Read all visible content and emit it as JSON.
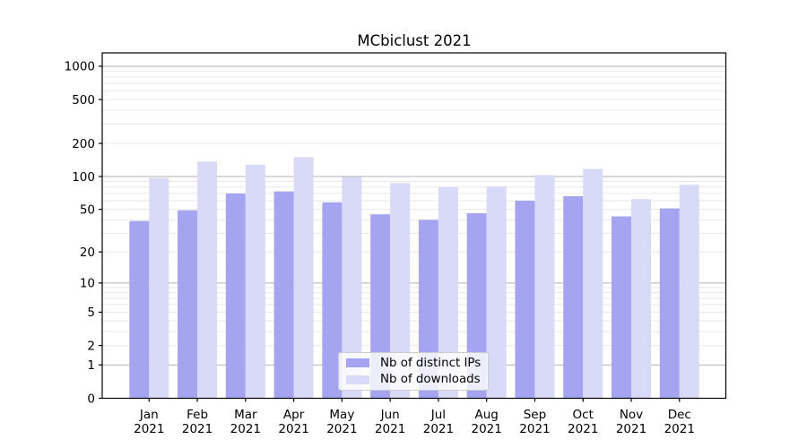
{
  "chart_data": {
    "type": "bar",
    "title": "MCbiclust 2021",
    "categories": [
      "Jan 2021",
      "Feb 2021",
      "Mar 2021",
      "Apr 2021",
      "May 2021",
      "Jun 2021",
      "Jul 2021",
      "Aug 2021",
      "Sep 2021",
      "Oct 2021",
      "Nov 2021",
      "Dec 2021"
    ],
    "series": [
      {
        "name": "Nb of distinct IPs",
        "color": "#a4a4f1",
        "values": [
          39,
          49,
          70,
          73,
          58,
          45,
          40,
          46,
          60,
          66,
          43,
          51
        ]
      },
      {
        "name": "Nb of downloads",
        "color": "#d9d9f8",
        "values": [
          97,
          137,
          128,
          150,
          99,
          87,
          80,
          81,
          103,
          117,
          62,
          84
        ]
      }
    ],
    "y_axis": {
      "scale": "log1p",
      "ticks": [
        1000,
        500,
        200,
        100,
        50,
        20,
        10,
        5,
        2,
        1,
        0
      ],
      "major_gridlines": [
        1,
        10,
        100,
        1000
      ],
      "ylim": [
        0,
        1000
      ]
    },
    "legend": {
      "position": "lower center"
    },
    "grid": "on",
    "colors": {
      "major_gridline": "#b2b2b2",
      "minor_gridline": "#e9e9e9",
      "axis": "#000000"
    }
  }
}
